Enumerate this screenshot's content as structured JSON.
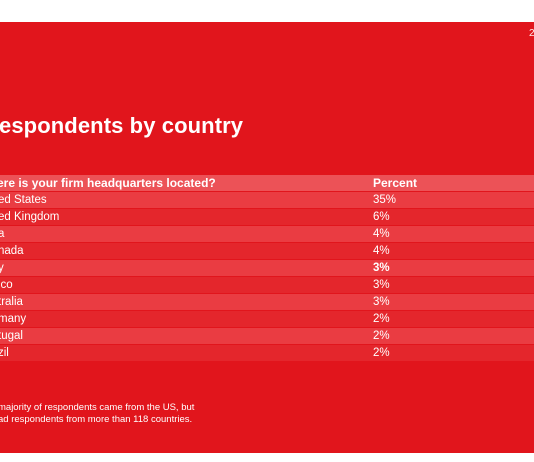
{
  "page": {
    "number": "2"
  },
  "title": "espondents by country",
  "table": {
    "header": {
      "country": "ere is your firm headquarters located?",
      "percent": "Percent"
    },
    "rows": [
      {
        "country": "ed States",
        "percent": "35%"
      },
      {
        "country": "ed Kingdom",
        "percent": "6%"
      },
      {
        "country": "a",
        "percent": "4%"
      },
      {
        "country": "nada",
        "percent": "4%"
      },
      {
        "country": "y",
        "percent": "3%"
      },
      {
        "country": "ico",
        "percent": "3%"
      },
      {
        "country": "tralia",
        "percent": "3%"
      },
      {
        "country": "many",
        "percent": "2%"
      },
      {
        "country": "tugal",
        "percent": "2%"
      },
      {
        "country": "zil",
        "percent": "2%"
      }
    ]
  },
  "footnote": {
    "line1": "majority of respondents came from the US, but",
    "line2": "ad respondents from more than 118 countries."
  },
  "colors": {
    "background": "#e1151c",
    "header_row": "#ec5257",
    "row_light": "#ea3c42",
    "row_dark": "#e4262c",
    "text": "#ffffff"
  }
}
